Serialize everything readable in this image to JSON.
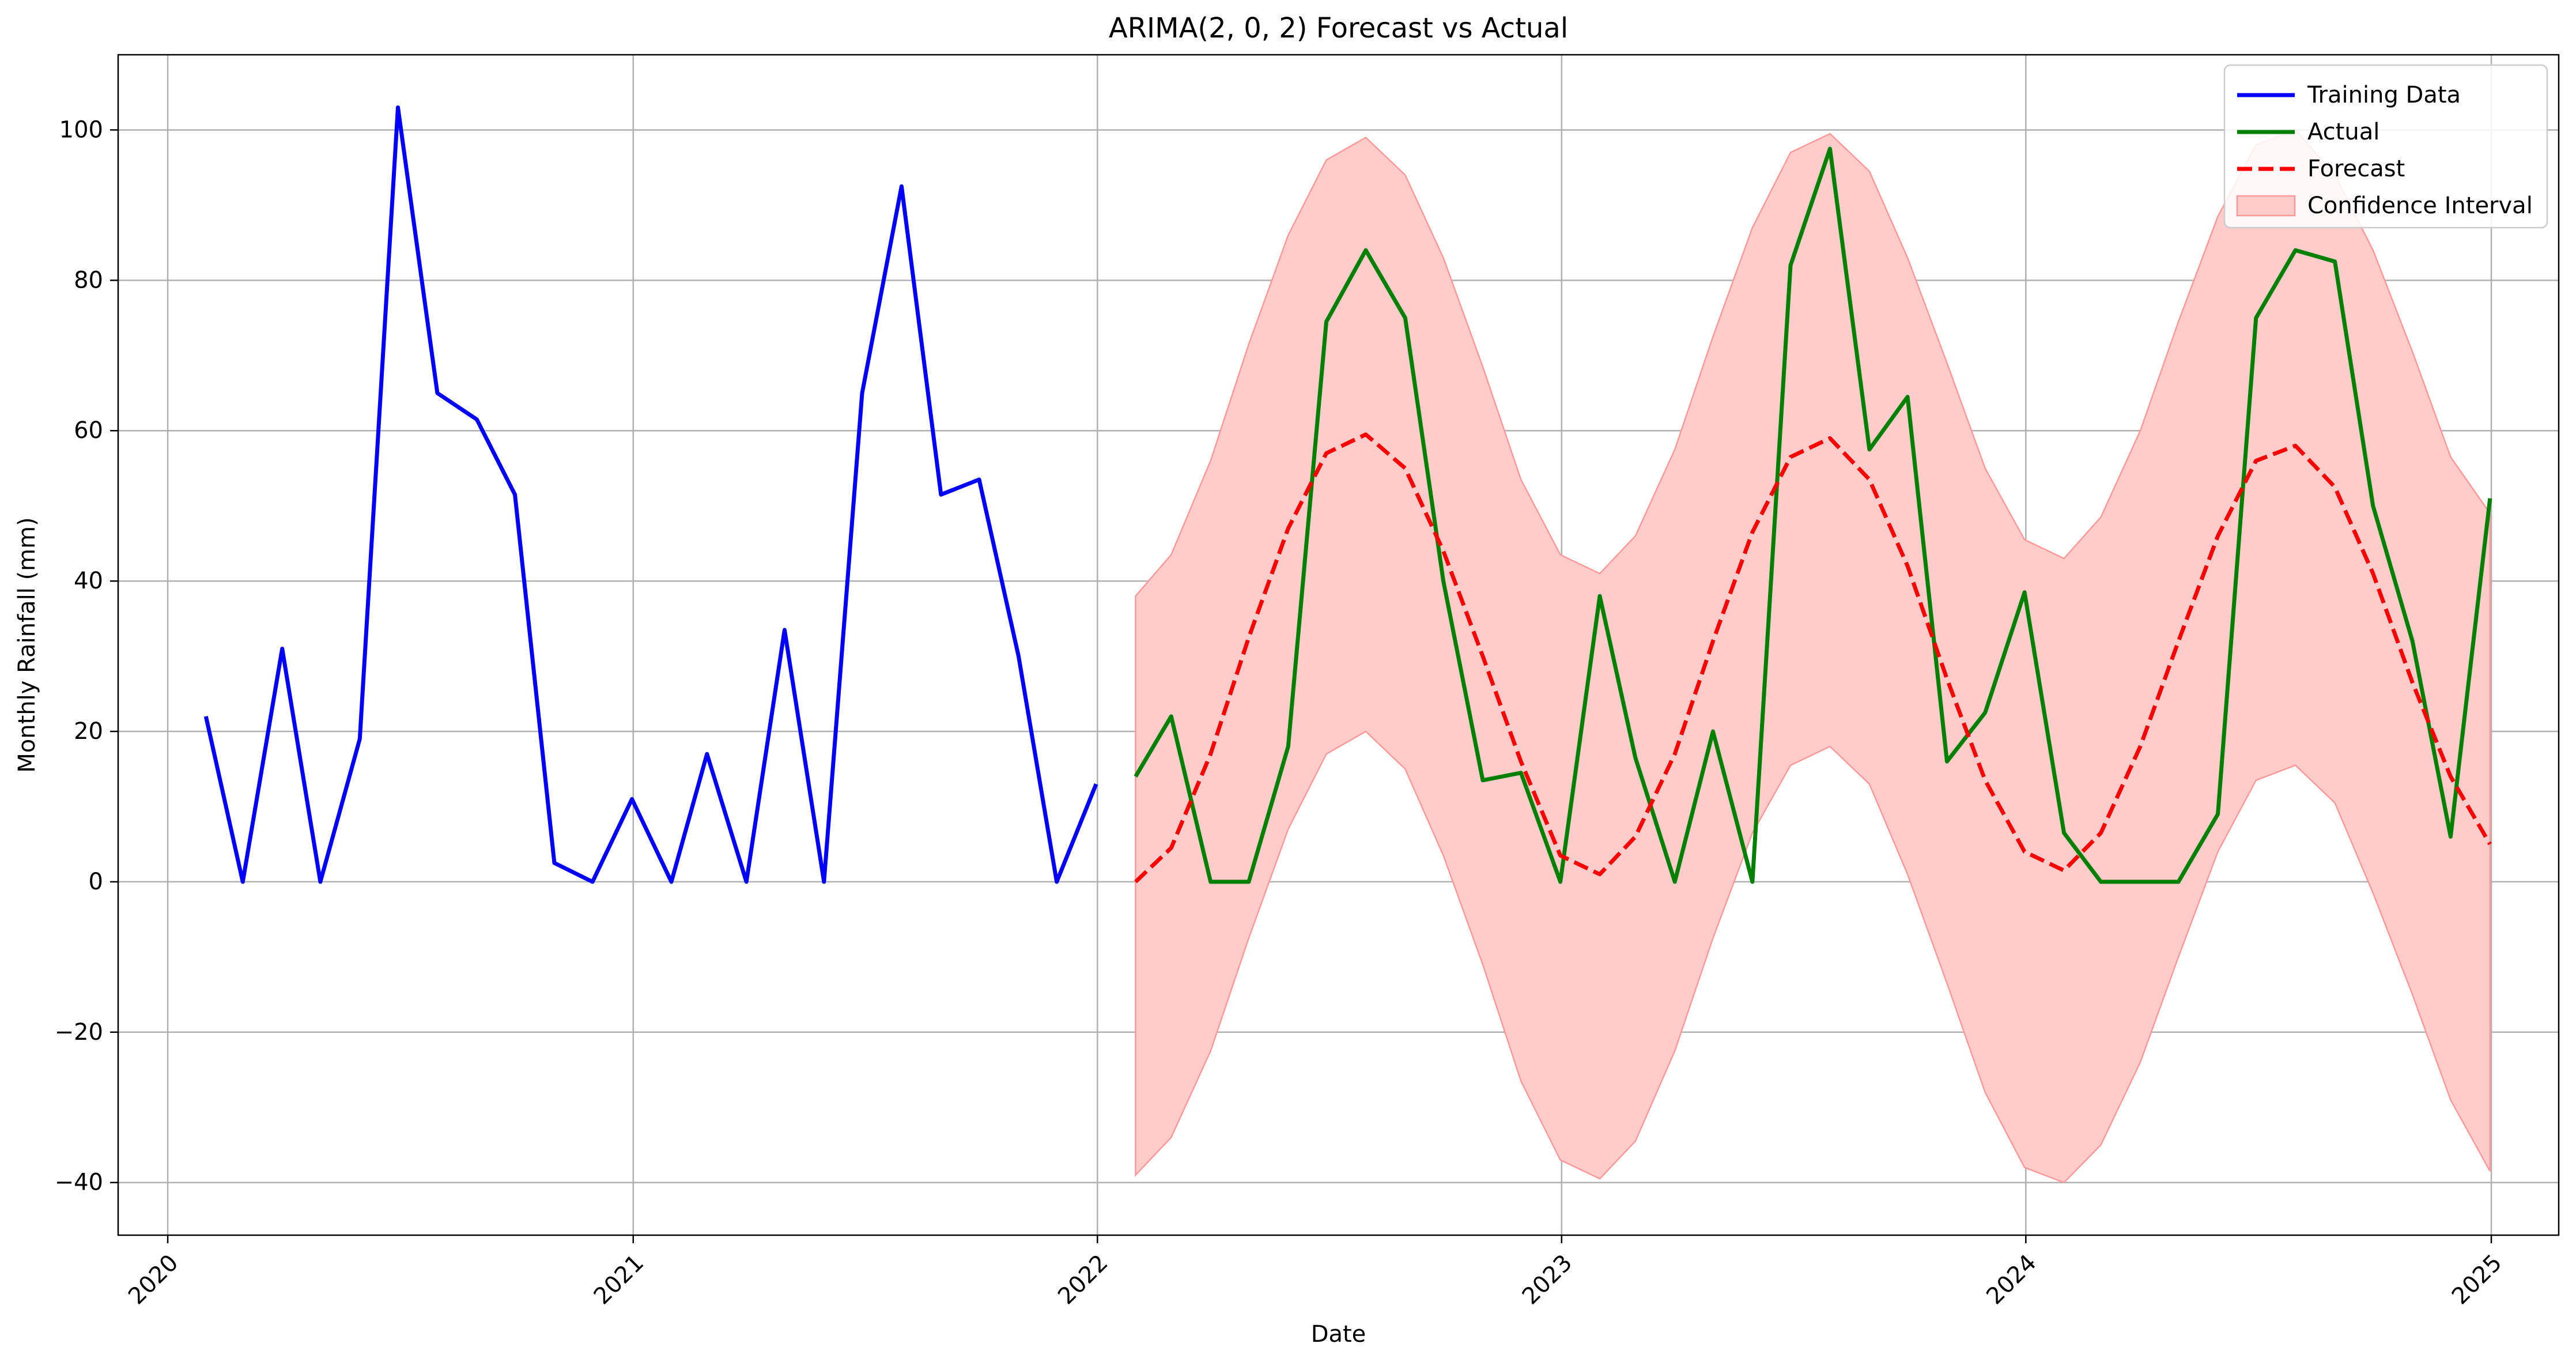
{
  "chart_data": {
    "type": "line",
    "title": "ARIMA(2, 0, 2) Forecast vs Actual",
    "xlabel": "Date",
    "ylabel": "Monthly Rainfall (mm)",
    "xlim": [
      "2019-11-23",
      "2025-02-23"
    ],
    "ylim": [
      -47,
      110
    ],
    "x_ticks": [
      {
        "date": "2020-01-01",
        "label": "2020"
      },
      {
        "date": "2021-01-01",
        "label": "2021"
      },
      {
        "date": "2022-01-01",
        "label": "2022"
      },
      {
        "date": "2023-01-01",
        "label": "2023"
      },
      {
        "date": "2024-01-01",
        "label": "2024"
      },
      {
        "date": "2025-01-01",
        "label": "2025"
      }
    ],
    "y_ticks": [
      -40,
      -20,
      0,
      20,
      40,
      60,
      80,
      100
    ],
    "y_tick_labels": [
      "−40",
      "−20",
      "0",
      "20",
      "40",
      "60",
      "80",
      "100"
    ],
    "grid": true,
    "legend_position": "top-right",
    "series": [
      {
        "name": "Training Data",
        "color": "#0000ff",
        "style": "solid",
        "x": [
          "2020-01-31",
          "2020-02-29",
          "2020-03-31",
          "2020-04-30",
          "2020-05-31",
          "2020-06-30",
          "2020-07-31",
          "2020-08-31",
          "2020-09-30",
          "2020-10-31",
          "2020-11-30",
          "2020-12-31",
          "2021-01-31",
          "2021-02-28",
          "2021-03-31",
          "2021-04-30",
          "2021-05-31",
          "2021-06-30",
          "2021-07-31",
          "2021-08-31",
          "2021-09-30",
          "2021-10-31",
          "2021-11-30",
          "2021-12-31"
        ],
        "values": [
          22.0,
          0.0,
          31.0,
          0.0,
          19.0,
          103.0,
          65.0,
          61.5,
          51.5,
          2.5,
          0.0,
          11.0,
          0.0,
          17.0,
          0.0,
          33.5,
          0.0,
          65.0,
          92.5,
          51.5,
          53.5,
          30.0,
          0.0,
          13.0
        ]
      },
      {
        "name": "Actual",
        "color": "#008000",
        "style": "solid",
        "x": [
          "2022-01-31",
          "2022-02-28",
          "2022-03-31",
          "2022-04-30",
          "2022-05-31",
          "2022-06-30",
          "2022-07-31",
          "2022-08-31",
          "2022-09-30",
          "2022-10-31",
          "2022-11-30",
          "2022-12-31",
          "2023-01-31",
          "2023-02-28",
          "2023-03-31",
          "2023-04-30",
          "2023-05-31",
          "2023-06-30",
          "2023-07-31",
          "2023-08-31",
          "2023-09-30",
          "2023-10-31",
          "2023-11-30",
          "2023-12-31",
          "2024-01-31",
          "2024-02-29",
          "2024-03-31",
          "2024-04-30",
          "2024-05-31",
          "2024-06-30",
          "2024-07-31",
          "2024-08-31",
          "2024-09-30",
          "2024-10-31",
          "2024-11-30",
          "2024-12-31"
        ],
        "values": [
          14.0,
          22.0,
          0.0,
          0.0,
          18.0,
          74.5,
          84.0,
          75.0,
          40.0,
          13.5,
          14.5,
          0.0,
          38.0,
          16.5,
          0.0,
          20.0,
          0.0,
          82.0,
          97.5,
          57.5,
          64.5,
          16.0,
          22.5,
          38.5,
          6.5,
          0.0,
          0.0,
          0.0,
          9.0,
          75.0,
          84.0,
          82.5,
          50.0,
          32.0,
          6.0,
          51.0
        ]
      },
      {
        "name": "Forecast",
        "color": "#ff0000",
        "style": "dashed",
        "x": [
          "2022-01-31",
          "2022-02-28",
          "2022-03-31",
          "2022-04-30",
          "2022-05-31",
          "2022-06-30",
          "2022-07-31",
          "2022-08-31",
          "2022-09-30",
          "2022-10-31",
          "2022-11-30",
          "2022-12-31",
          "2023-01-31",
          "2023-02-28",
          "2023-03-31",
          "2023-04-30",
          "2023-05-31",
          "2023-06-30",
          "2023-07-31",
          "2023-08-31",
          "2023-09-30",
          "2023-10-31",
          "2023-11-30",
          "2023-12-31",
          "2024-01-31",
          "2024-02-29",
          "2024-03-31",
          "2024-04-30",
          "2024-05-31",
          "2024-06-30",
          "2024-07-31",
          "2024-08-31",
          "2024-09-30",
          "2024-10-31",
          "2024-11-30",
          "2024-12-31"
        ],
        "values": [
          0.0,
          4.5,
          17.0,
          32.5,
          47.0,
          57.0,
          59.5,
          55.0,
          44.0,
          30.0,
          16.0,
          3.5,
          1.0,
          6.0,
          17.0,
          32.0,
          46.5,
          56.5,
          59.0,
          53.5,
          42.0,
          27.0,
          13.5,
          4.0,
          1.5,
          6.5,
          18.0,
          32.0,
          46.0,
          56.0,
          58.0,
          52.5,
          41.0,
          26.5,
          14.0,
          5.0
        ]
      }
    ],
    "confidence_interval": {
      "name": "Confidence Interval",
      "color": "#ffcccc",
      "edge_color": "#ff9999",
      "x": [
        "2022-01-31",
        "2022-02-28",
        "2022-03-31",
        "2022-04-30",
        "2022-05-31",
        "2022-06-30",
        "2022-07-31",
        "2022-08-31",
        "2022-09-30",
        "2022-10-31",
        "2022-11-30",
        "2022-12-31",
        "2023-01-31",
        "2023-02-28",
        "2023-03-31",
        "2023-04-30",
        "2023-05-31",
        "2023-06-30",
        "2023-07-31",
        "2023-08-31",
        "2023-09-30",
        "2023-10-31",
        "2023-11-30",
        "2023-12-31",
        "2024-01-31",
        "2024-02-29",
        "2024-03-31",
        "2024-04-30",
        "2024-05-31",
        "2024-06-30",
        "2024-07-31",
        "2024-08-31",
        "2024-09-30",
        "2024-10-31",
        "2024-11-30",
        "2024-12-31"
      ],
      "lower": [
        -39.0,
        -34.0,
        -22.5,
        -7.5,
        7.0,
        17.0,
        20.0,
        15.0,
        3.5,
        -11.0,
        -26.5,
        -37.0,
        -39.5,
        -34.5,
        -22.5,
        -7.5,
        6.5,
        15.5,
        18.0,
        13.0,
        1.0,
        -13.5,
        -28.0,
        -38.0,
        -40.0,
        -35.0,
        -24.0,
        -10.0,
        4.0,
        13.5,
        15.5,
        10.5,
        -1.5,
        -15.0,
        -29.0,
        -38.5
      ],
      "upper": [
        38.0,
        43.5,
        56.0,
        71.5,
        86.0,
        96.0,
        99.0,
        94.0,
        83.0,
        68.5,
        53.5,
        43.5,
        41.0,
        46.0,
        57.5,
        72.5,
        87.0,
        97.0,
        99.5,
        94.5,
        83.0,
        69.0,
        55.0,
        45.5,
        43.0,
        48.5,
        60.0,
        74.5,
        88.5,
        98.0,
        100.0,
        94.0,
        84.0,
        70.5,
        56.5,
        49.0
      ]
    }
  }
}
